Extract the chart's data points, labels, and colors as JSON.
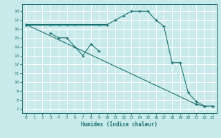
{
  "xlabel": "Humidex (Indice chaleur)",
  "bg_color": "#c8eaea",
  "line_color": "#1a7070",
  "grid_color": "#ffffff",
  "xlim": [
    -0.5,
    23.5
  ],
  "ylim": [
    6.5,
    18.8
  ],
  "yticks": [
    7,
    8,
    9,
    10,
    11,
    12,
    13,
    14,
    15,
    16,
    17,
    18
  ],
  "xticks": [
    0,
    1,
    2,
    3,
    4,
    5,
    6,
    7,
    8,
    9,
    10,
    11,
    12,
    13,
    14,
    15,
    16,
    17,
    18,
    19,
    20,
    21,
    22,
    23
  ],
  "line_flat": {
    "x": [
      0,
      10
    ],
    "y": [
      16.5,
      16.5
    ]
  },
  "line_curve": {
    "x": [
      0,
      3,
      4,
      5,
      6,
      9,
      10,
      11,
      12,
      13,
      14,
      15,
      16,
      17,
      18,
      19,
      20,
      21,
      22,
      23
    ],
    "y": [
      16.5,
      16.5,
      16.5,
      16.5,
      16.5,
      16.5,
      16.5,
      17.0,
      17.5,
      18.0,
      18.0,
      18.0,
      17.0,
      16.3,
      12.2,
      12.2,
      8.8,
      7.8,
      7.3,
      7.3
    ]
  },
  "line_diag": {
    "x": [
      0,
      21,
      22,
      23
    ],
    "y": [
      16.5,
      7.5,
      7.3,
      7.3
    ]
  },
  "line_zigzag": {
    "x": [
      3,
      4,
      5,
      6,
      7,
      8,
      9
    ],
    "y": [
      15.5,
      15.0,
      15.0,
      14.0,
      13.0,
      14.3,
      13.5
    ]
  }
}
